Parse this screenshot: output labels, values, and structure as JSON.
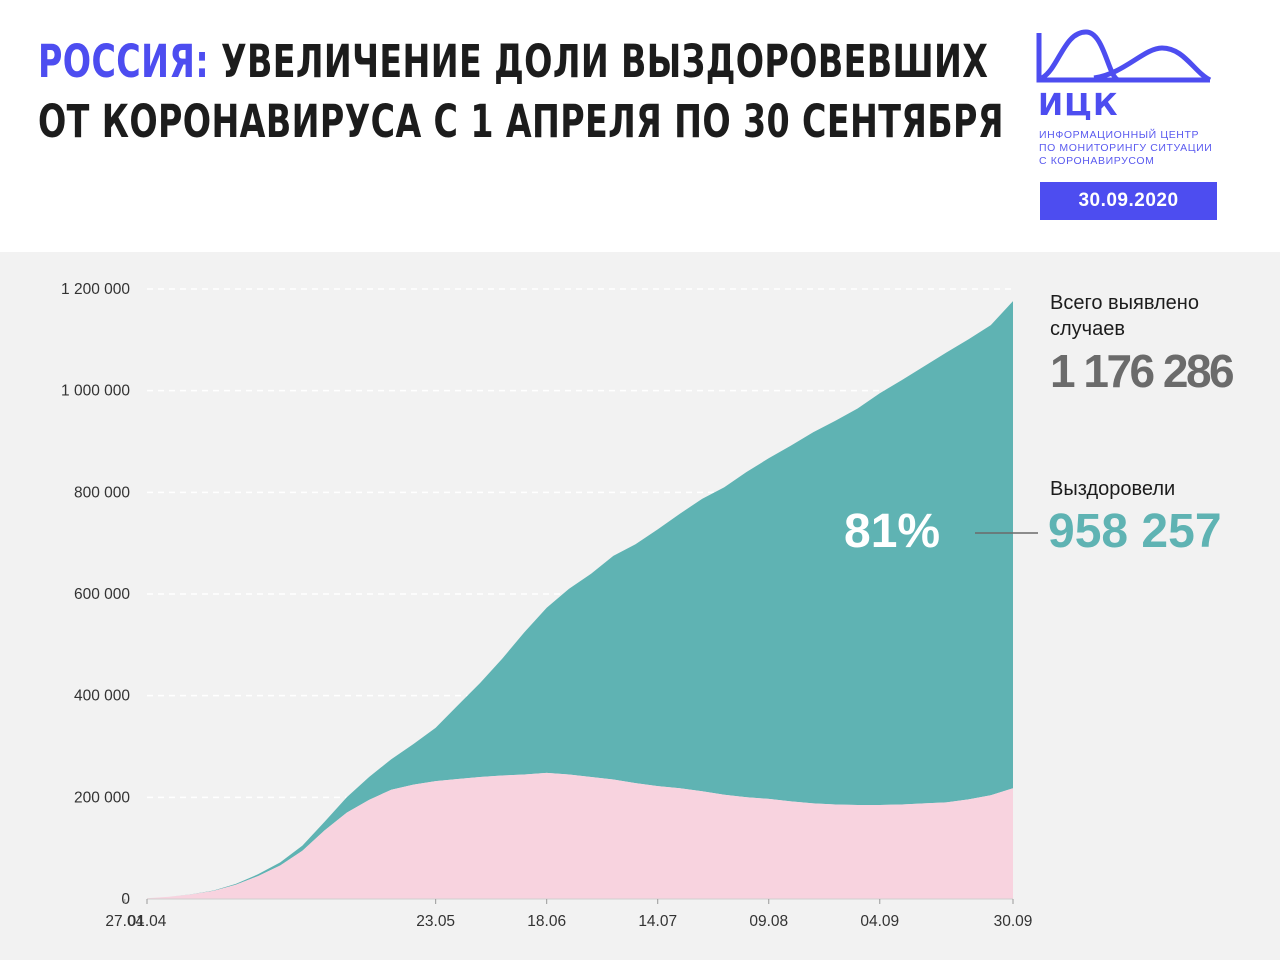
{
  "header": {
    "title_accent": "РОССИЯ:",
    "title_line1": " УВЕЛИЧЕНИЕ ДОЛИ ВЫЗДОРОВЕВШИХ",
    "title_line2": "ОТ КОРОНАВИРУСА С 1 АПРЕЛЯ ПО 30 СЕНТЯБРЯ"
  },
  "logo": {
    "name": "ИЦК",
    "desc_line1": "ИНФОРМАЦИОННЫЙ ЦЕНТР",
    "desc_line2": "ПО МОНИТОРИНГУ СИТУАЦИИ",
    "desc_line3": "С КОРОНАВИРУСОМ",
    "date": "30.09.2020",
    "color": "#4d4df0"
  },
  "summary": {
    "total_label": "Всего выявлено случаев",
    "total_value": "1 176 286",
    "recovered_label": "Выздоровели",
    "recovered_value": "958 257",
    "recovered_share": "81%"
  },
  "chart_data": {
    "type": "area",
    "stacked": true,
    "x": [
      "01.04",
      "04.04",
      "08.04",
      "12.04",
      "16.04",
      "20.04",
      "24.04",
      "28.04",
      "02.05",
      "06.05",
      "10.05",
      "14.05",
      "18.05",
      "23.05",
      "28.05",
      "02.06",
      "07.06",
      "12.06",
      "18.06",
      "23.06",
      "28.06",
      "04.07",
      "09.07",
      "14.07",
      "19.07",
      "25.07",
      "30.07",
      "04.08",
      "09.08",
      "14.08",
      "19.08",
      "24.08",
      "29.08",
      "04.09",
      "09.09",
      "14.09",
      "19.09",
      "24.09",
      "27.09",
      "30.09"
    ],
    "series": [
      {
        "name": "Выздоровели",
        "color": "#5fb3b3",
        "values": [
          0,
          100,
          300,
          800,
          1800,
          3500,
          6000,
          10000,
          17000,
          30000,
          45000,
          60000,
          80000,
          105000,
          145000,
          185000,
          230000,
          280000,
          325000,
          365000,
          400000,
          440000,
          470000,
          505000,
          540000,
          575000,
          605000,
          640000,
          670000,
          700000,
          730000,
          755000,
          780000,
          810000,
          835000,
          860000,
          885000,
          905000,
          925000,
          958257
        ]
      },
      {
        "name": "",
        "color": "#f8d3df",
        "values": [
          1500,
          4500,
          9000,
          16000,
          28000,
          45000,
          66000,
          95000,
          135000,
          170000,
          195000,
          215000,
          225000,
          232000,
          236000,
          240000,
          243000,
          245000,
          248000,
          245000,
          240000,
          235000,
          228000,
          222000,
          218000,
          212000,
          205000,
          200000,
          197000,
          192000,
          188000,
          186000,
          185000,
          185000,
          186000,
          188000,
          190000,
          196000,
          204000,
          218029
        ]
      }
    ],
    "totals_last": 1176286,
    "ylim": [
      0,
      1200000
    ],
    "yticks": [
      0,
      200000,
      400000,
      600000,
      800000,
      1000000,
      1200000
    ],
    "ytick_labels": [
      "0",
      "200 000",
      "400 000",
      "600 000",
      "800 000",
      "1 000 000",
      "1 200 000"
    ],
    "xtick_labels": [
      "01.04",
      "27.04",
      "23.05",
      "18.06",
      "14.07",
      "09.08",
      "04.09",
      "30.09"
    ],
    "grid": true
  }
}
